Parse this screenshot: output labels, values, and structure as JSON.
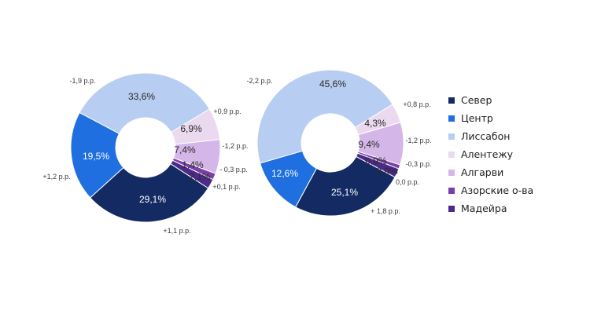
{
  "colors": {
    "Север": "#132a63",
    "Центр": "#1f6fe0",
    "Лиссабон": "#b7cdf2",
    "Алентежу": "#ead9ef",
    "Алгарви": "#d5b6e8",
    "Азорские о-ва": "#7b3fa8",
    "Мадейра": "#4d2a8a"
  },
  "chart_data": [
    {
      "type": "pie",
      "categories": [
        "Север",
        "Центр",
        "Лиссабон",
        "Алентежу",
        "Алгарви",
        "Азорские о-ва",
        "Мадейра"
      ],
      "values": [
        29.1,
        19.5,
        33.6,
        6.9,
        7.4,
        1.4,
        2.1
      ],
      "value_labels": [
        "29,1%",
        "19,5%",
        "33,6%",
        "6,9%",
        "7,4%",
        "1,4%",
        "2,1%"
      ],
      "change_labels": [
        "+1,1 p.p.",
        "+1,2 p.p.",
        "-1,9 p.p.",
        "+0,9 p.p.",
        "-1,2 p.p.",
        "- 0,3 p.p.",
        "+0,1 p.p."
      ]
    },
    {
      "type": "pie",
      "categories": [
        "Север",
        "Центр",
        "Лиссабон",
        "Алентежу",
        "Алгарви",
        "Азорские о-ва",
        "Мадейра"
      ],
      "values": [
        25.1,
        12.6,
        45.6,
        4.3,
        9.4,
        0.9,
        2.0
      ],
      "value_labels": [
        "25,1%",
        "12,6%",
        "45,6%",
        "4,3%",
        "9,4%",
        "0,9%",
        "2,0%"
      ],
      "change_labels": [
        "+ 1,8 p.p.",
        "",
        "-2,2 p.p.",
        "+0,8 p.p.",
        "-1,2 p.p.",
        "-0,3 p.p.",
        "0,0 p.p."
      ]
    }
  ],
  "legend": [
    "Север",
    "Центр",
    "Лиссабон",
    "Алентежу",
    "Алгарви",
    "Азорские о-ва",
    "Мадейра"
  ]
}
